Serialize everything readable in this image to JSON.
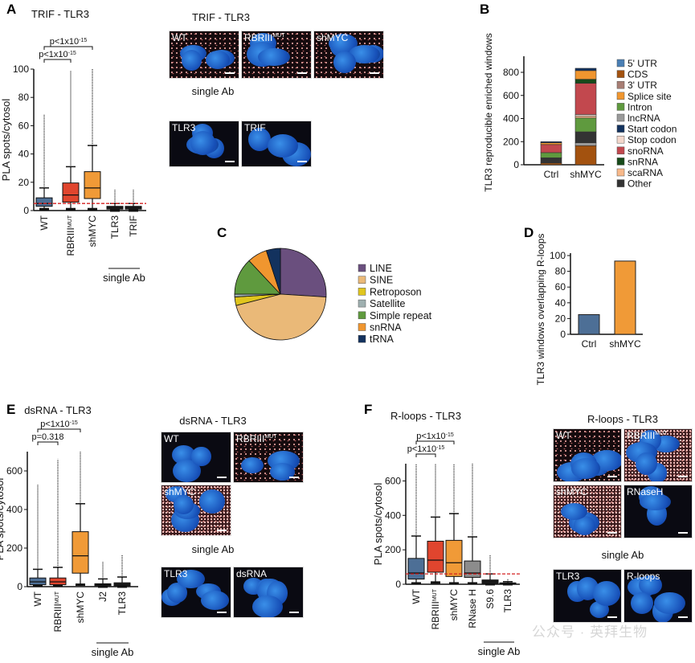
{
  "panels": {
    "A": "A",
    "B": "B",
    "C": "C",
    "D": "D",
    "E": "E",
    "F": "F"
  },
  "colors": {
    "wt": "#4d6f96",
    "rbriii": "#e0452e",
    "shmyc": "#f09a37",
    "rnaseh": "#8c8c8c",
    "single": "#222222",
    "threshold": "#d42020"
  },
  "micrographs": {
    "A": {
      "title": "TRIF - TLR3",
      "single_ab": "single Ab",
      "tiles": [
        {
          "label": "WT"
        },
        {
          "label": "RBRIII",
          "sup": "MUT"
        },
        {
          "label": "shMYC"
        },
        {
          "label": "TLR3"
        },
        {
          "label": "TRIF"
        }
      ]
    },
    "E": {
      "title": "dsRNA - TLR3",
      "single_ab": "single Ab",
      "tiles": [
        {
          "label": "WT"
        },
        {
          "label": "RBRIII",
          "sup": "MUT"
        },
        {
          "label": "shMYC"
        },
        {
          "label": "TLR3"
        },
        {
          "label": "dsRNA"
        }
      ]
    },
    "F": {
      "title": "R-loops - TLR3",
      "single_ab": "single Ab",
      "tiles": [
        {
          "label": "WT"
        },
        {
          "label": "RBRIII",
          "sup": "MUT"
        },
        {
          "label": "shMYC"
        },
        {
          "label": "RNaseH"
        },
        {
          "label": "TLR3"
        },
        {
          "label": "R-loops"
        }
      ]
    }
  },
  "watermark": "公众号 · 英拜生物",
  "chart_data": [
    {
      "id": "A",
      "type": "boxplot",
      "title": "TRIF - TLR3",
      "ylabel": "PLA spots/cytosol",
      "ylim": [
        0,
        100
      ],
      "yticks": [
        0,
        20,
        40,
        60,
        80,
        100
      ],
      "threshold": 5,
      "group_label": "single Ab",
      "categories": [
        {
          "label": "WT"
        },
        {
          "label": "RBRIII",
          "sup": "MUT"
        },
        {
          "label": "shMYC"
        },
        {
          "label": "TLR3"
        },
        {
          "label": "TRIF"
        }
      ],
      "boxes": [
        {
          "min": 1,
          "q1": 3,
          "median": 5,
          "q3": 9,
          "max": 16,
          "outlier_max": 68,
          "color": "#4d6f96"
        },
        {
          "min": 1,
          "q1": 6,
          "median": 11,
          "q3": 19.5,
          "max": 31,
          "outlier_max": 99,
          "color": "#e0452e"
        },
        {
          "min": 1,
          "q1": 8.5,
          "median": 16,
          "q3": 27.5,
          "max": 46,
          "outlier_max": 100,
          "color": "#f09a37"
        },
        {
          "min": 0,
          "q1": 1,
          "median": 2,
          "q3": 3,
          "max": 5,
          "outlier_max": 15,
          "color": "#222222"
        },
        {
          "min": 0,
          "q1": 1,
          "median": 2,
          "q3": 3,
          "max": 5,
          "outlier_max": 15,
          "color": "#222222"
        }
      ],
      "comparisons": [
        {
          "from": 0,
          "to": 1,
          "text": "p<1x10",
          "sup": "-15"
        },
        {
          "from": 0,
          "to": 2,
          "text": "p<1x10",
          "sup": "-15"
        }
      ]
    },
    {
      "id": "B",
      "type": "stacked_bar",
      "ylabel": "TLR3 reproducible enriched windows",
      "ylim": [
        0,
        900
      ],
      "yticks": [
        0,
        200,
        400,
        600,
        800
      ],
      "categories": [
        "Ctrl",
        "shMYC"
      ],
      "series": [
        {
          "name": "5' UTR",
          "color": "#4a7fb5",
          "values": [
            0,
            0
          ]
        },
        {
          "name": "CDS",
          "color": "#a3520f",
          "values": [
            15,
            165
          ]
        },
        {
          "name": "3' UTR",
          "color": "#a87e74",
          "values": [
            0,
            0
          ]
        },
        {
          "name": "Splice site",
          "color": "#f0962f",
          "values": [
            15,
            75
          ]
        },
        {
          "name": "Intron",
          "color": "#5f9a3e",
          "values": [
            45,
            120
          ]
        },
        {
          "name": "lncRNA",
          "color": "#9a9a9a",
          "values": [
            0,
            25
          ]
        },
        {
          "name": "Start codon",
          "color": "#13325e",
          "values": [
            10,
            20
          ]
        },
        {
          "name": "Stop codon",
          "color": "#f4d8cc",
          "values": [
            0,
            15
          ]
        },
        {
          "name": "snoRNA",
          "color": "#c2484e",
          "values": [
            70,
            270
          ]
        },
        {
          "name": "snRNA",
          "color": "#174a1a",
          "values": [
            0,
            35
          ]
        },
        {
          "name": "scaRNA",
          "color": "#f8b98a",
          "values": [
            0,
            15
          ]
        },
        {
          "name": "Other",
          "color": "#333333",
          "values": [
            45,
            95
          ]
        }
      ]
    },
    {
      "id": "C",
      "type": "pie",
      "slices": [
        {
          "name": "LINE",
          "value": 26,
          "color": "#6a4f7e"
        },
        {
          "name": "SINE",
          "value": 45,
          "color": "#eab978"
        },
        {
          "name": "Retroposon",
          "value": 3,
          "color": "#e0c51d"
        },
        {
          "name": "Satellite",
          "value": 1,
          "color": "#9fb0b0"
        },
        {
          "name": "Simple repeat",
          "value": 13,
          "color": "#5f9a3e"
        },
        {
          "name": "snRNA",
          "value": 7,
          "color": "#f0962f"
        },
        {
          "name": "tRNA",
          "value": 5,
          "color": "#13325e"
        }
      ]
    },
    {
      "id": "D",
      "type": "bar",
      "ylabel": "TLR3 windows overlapping R-loops",
      "ylim": [
        0,
        100
      ],
      "yticks": [
        0,
        20,
        40,
        60,
        80,
        100
      ],
      "categories": [
        "Ctrl",
        "shMYC"
      ],
      "values": [
        25,
        93
      ],
      "colors": [
        "#4d6f96",
        "#f09a37"
      ]
    },
    {
      "id": "E",
      "type": "boxplot",
      "title": "dsRNA - TLR3",
      "ylabel": "PLA spots/cytosol",
      "ylim": [
        0,
        700
      ],
      "yticks": [
        0,
        200,
        400,
        600
      ],
      "group_label": "single Ab",
      "categories": [
        {
          "label": "WT"
        },
        {
          "label": "RBRIII",
          "sup": "MUT"
        },
        {
          "label": "shMYC"
        },
        {
          "label": "J2"
        },
        {
          "label": "TLR3"
        }
      ],
      "boxes": [
        {
          "min": 5,
          "q1": 10,
          "median": 25,
          "q3": 45,
          "max": 90,
          "outlier_max": 530,
          "color": "#4d6f96"
        },
        {
          "min": 5,
          "q1": 10,
          "median": 25,
          "q3": 45,
          "max": 100,
          "outlier_max": 660,
          "color": "#e0452e"
        },
        {
          "min": 10,
          "q1": 70,
          "median": 160,
          "q3": 285,
          "max": 430,
          "outlier_max": 700,
          "color": "#f09a37"
        },
        {
          "min": 0,
          "q1": 5,
          "median": 10,
          "q3": 15,
          "max": 40,
          "outlier_max": 130,
          "color": "#222222"
        },
        {
          "min": 0,
          "q1": 5,
          "median": 10,
          "q3": 20,
          "max": 50,
          "outlier_max": 165,
          "color": "#222222"
        }
      ],
      "comparisons": [
        {
          "from": 0,
          "to": 1,
          "text": "p=0.318"
        },
        {
          "from": 0,
          "to": 2,
          "text": "p<1x10",
          "sup": "-15"
        }
      ]
    },
    {
      "id": "F",
      "type": "boxplot",
      "title": "R-loops - TLR3",
      "ylabel": "PLA spots/cytosol",
      "ylim": [
        0,
        700
      ],
      "yticks": [
        0,
        200,
        400,
        600
      ],
      "threshold": 60,
      "group_label": "single Ab",
      "categories": [
        {
          "label": "WT"
        },
        {
          "label": "RBRIII",
          "sup": "MUT"
        },
        {
          "label": "shMYC"
        },
        {
          "label": "RNase H"
        },
        {
          "label": "S9.6"
        },
        {
          "label": "TLR3"
        }
      ],
      "boxes": [
        {
          "min": 5,
          "q1": 30,
          "median": 65,
          "q3": 150,
          "max": 280,
          "outlier_max": 700,
          "color": "#4d6f96"
        },
        {
          "min": 10,
          "q1": 70,
          "median": 140,
          "q3": 250,
          "max": 390,
          "outlier_max": 700,
          "color": "#e0452e"
        },
        {
          "min": 5,
          "q1": 45,
          "median": 125,
          "q3": 255,
          "max": 410,
          "outlier_max": 700,
          "color": "#f09a37"
        },
        {
          "min": 5,
          "q1": 40,
          "median": 65,
          "q3": 135,
          "max": 275,
          "outlier_max": 700,
          "color": "#8c8c8c"
        },
        {
          "min": 0,
          "q1": 5,
          "median": 15,
          "q3": 25,
          "max": 60,
          "outlier_max": 170,
          "color": "#222222"
        },
        {
          "min": 0,
          "q1": 2,
          "median": 5,
          "q3": 8,
          "max": 15,
          "outlier_max": 30,
          "color": "#222222"
        }
      ],
      "comparisons": [
        {
          "from": 0,
          "to": 1,
          "text": "p<1x10",
          "sup": "-15"
        },
        {
          "from": 0,
          "to": 2,
          "text": "p<1x10",
          "sup": "-15"
        }
      ]
    }
  ]
}
